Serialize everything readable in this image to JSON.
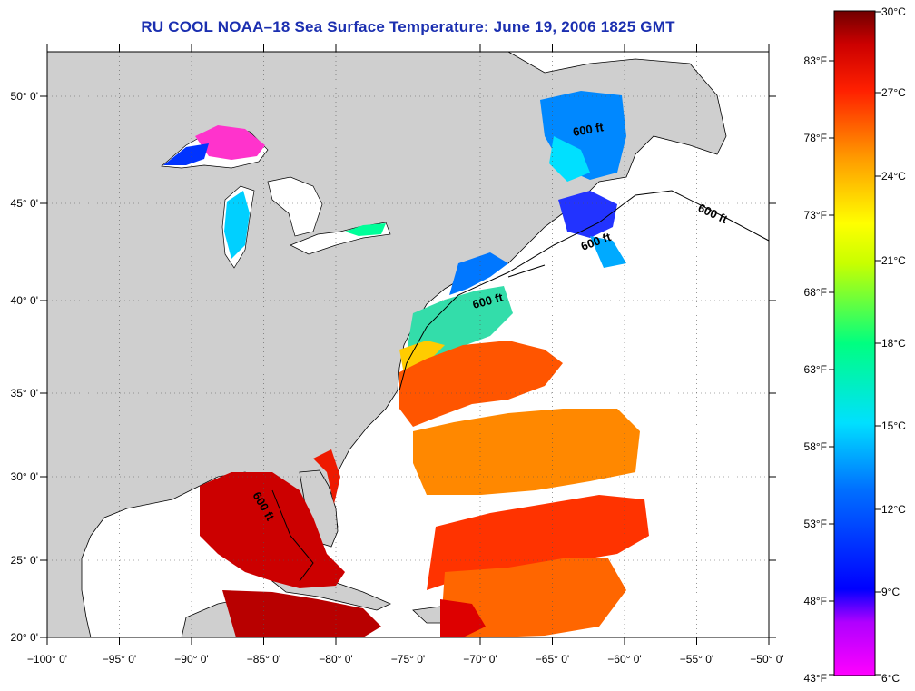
{
  "title": "RU COOL  NOAA–18  Sea Surface Temperature:  June 19, 2006 1825 GMT",
  "map": {
    "lon_range": [
      -100,
      -50
    ],
    "lat_range": [
      20,
      52
    ],
    "lon_ticks": [
      "−100° 0'",
      "−95° 0'",
      "−90° 0'",
      "−85° 0'",
      "−80° 0'",
      "−75° 0'",
      "−70° 0'",
      "−65° 0'",
      "−60° 0'",
      "−55° 0'",
      "−50° 0'"
    ],
    "lat_ticks": [
      "20° 0'",
      "25° 0'",
      "30° 0'",
      "35° 0'",
      "40° 0'",
      "45° 0'",
      "50° 0'"
    ],
    "land_color": "#cfcfcf",
    "ocean_color": "#ffffff",
    "gridlines": "dotted",
    "depth_contour_label": "600 ft",
    "depth_labels": [
      "600 ft",
      "600 ft",
      "600 ft",
      "600 ft",
      "600 ft"
    ]
  },
  "colorbar": {
    "celsius_labels": [
      "30°C",
      "27°C",
      "24°C",
      "21°C",
      "18°C",
      "15°C",
      "12°C",
      "9°C",
      "6°C"
    ],
    "fahrenheit_labels": [
      "83°F",
      "78°F",
      "73°F",
      "68°F",
      "63°F",
      "58°F",
      "53°F",
      "48°F",
      "43°F"
    ],
    "range_c": [
      6,
      30
    ],
    "colors": [
      "#ff00ff",
      "#5a00ff",
      "#0000ff",
      "#0099ff",
      "#00ffff",
      "#00ff66",
      "#ffff00",
      "#ff9900",
      "#ff0000",
      "#800000"
    ]
  }
}
